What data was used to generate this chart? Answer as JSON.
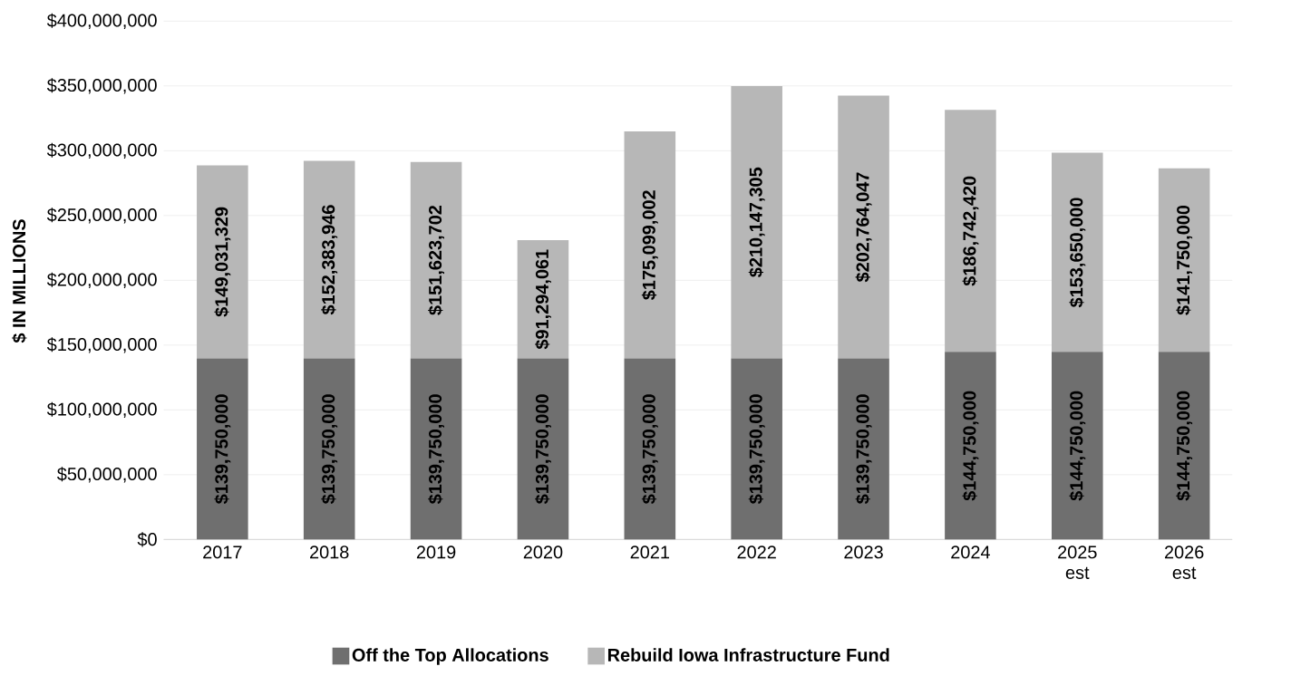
{
  "chart_data": {
    "type": "bar",
    "stacked": true,
    "ylabel": "$ IN MILLIONS",
    "categories": [
      "2017",
      "2018",
      "2019",
      "2020",
      "2021",
      "2022",
      "2023",
      "2024",
      "2025 est",
      "2026 est"
    ],
    "series": [
      {
        "name": "Off the Top Allocations",
        "color": "#6f6f6f",
        "values": [
          139750000,
          139750000,
          139750000,
          139750000,
          139750000,
          139750000,
          139750000,
          144750000,
          144750000,
          144750000
        ],
        "value_labels": [
          "$139,750,000",
          "$139,750,000",
          "$139,750,000",
          "$139,750,000",
          "$139,750,000",
          "$139,750,000",
          "$139,750,000",
          "$144,750,000",
          "$144,750,000",
          "$144,750,000"
        ]
      },
      {
        "name": "Rebuild Iowa Infrastructure Fund",
        "color": "#b7b7b7",
        "values": [
          149031329,
          152383946,
          151623702,
          91294061,
          175099002,
          210147305,
          202764047,
          186742420,
          153650000,
          141750000
        ],
        "value_labels": [
          "$149,031,329",
          "$152,383,946",
          "$151,623,702",
          "$91,294,061",
          "$175,099,002",
          "$210,147,305",
          "$202,764,047",
          "$186,742,420",
          "$153,650,000",
          "$141,750,000"
        ]
      }
    ],
    "ylim": [
      0,
      400000000
    ],
    "yticks": [
      {
        "value": 0,
        "label": "$0"
      },
      {
        "value": 50000000,
        "label": "$50,000,000"
      },
      {
        "value": 100000000,
        "label": "$100,000,000"
      },
      {
        "value": 150000000,
        "label": "$150,000,000"
      },
      {
        "value": 200000000,
        "label": "$200,000,000"
      },
      {
        "value": 250000000,
        "label": "$250,000,000"
      },
      {
        "value": 300000000,
        "label": "$300,000,000"
      },
      {
        "value": 350000000,
        "label": "$350,000,000"
      },
      {
        "value": 400000000,
        "label": "$400,000,000"
      }
    ],
    "grid": "y",
    "legend": "bottom"
  }
}
